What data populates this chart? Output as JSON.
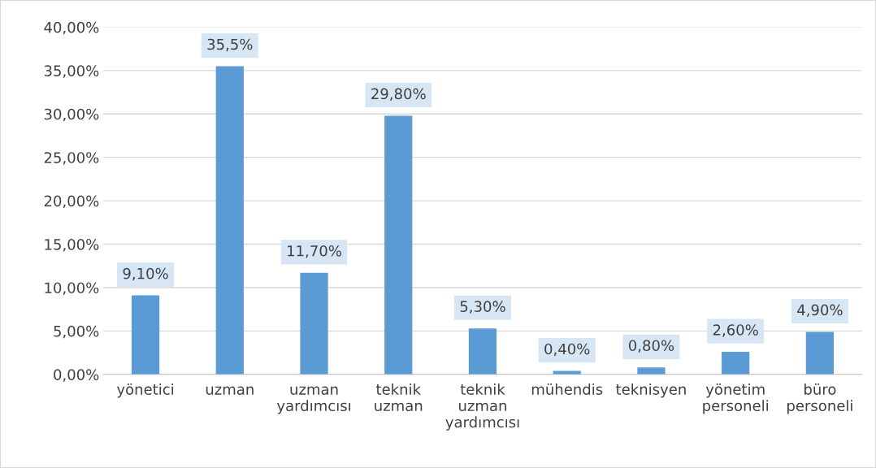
{
  "chart_data": {
    "type": "bar",
    "categories": [
      "yönetici",
      "uzman",
      "uzman\nyardımcısı",
      "teknik\nuzman",
      "teknik\nuzman\nyardımcısı",
      "mühendis",
      "teknisyen",
      "yönetim\npersoneli",
      "büro\npersoneli"
    ],
    "values": [
      9.1,
      35.5,
      11.7,
      29.8,
      5.3,
      0.4,
      0.8,
      2.6,
      4.9
    ],
    "value_labels": [
      "9,10%",
      "35,5%",
      "11,70%",
      "29,80%",
      "5,30%",
      "0,40%",
      "0,80%",
      "2,60%",
      "4,90%"
    ],
    "color": "#5b9bd5",
    "ylim": [
      0,
      40
    ],
    "yticks": [
      {
        "value": 0,
        "label": "0,00%"
      },
      {
        "value": 5,
        "label": "5,00%"
      },
      {
        "value": 10,
        "label": "10,00%"
      },
      {
        "value": 15,
        "label": "15,00%"
      },
      {
        "value": 20,
        "label": "20,00%"
      },
      {
        "value": 25,
        "label": "25,00%"
      },
      {
        "value": 30,
        "label": "30,00%"
      },
      {
        "value": 35,
        "label": "35,00%"
      },
      {
        "value": 40,
        "label": "40,00%"
      }
    ],
    "grid": "y"
  }
}
